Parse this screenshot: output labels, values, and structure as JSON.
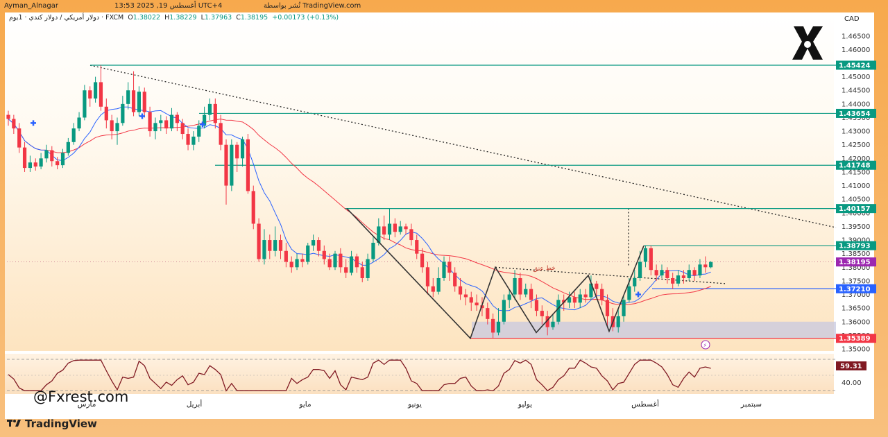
{
  "topbar": {
    "author": "Ayman_Alnagar",
    "published": "نُشر بواسطة TradingView.com",
    "datetime": "13:53 2025 ,19 أغسطس UTC+4"
  },
  "ohlc": {
    "symbol": "دولار أمريكي / دولار كندي · 1يوم · FXCM",
    "open_label": "O",
    "open": "1.38022",
    "high_label": "H",
    "high": "1.38229",
    "low_label": "L",
    "low": "1.37963",
    "close_label": "C",
    "close": "1.38195",
    "change": "+0.00173 (+0.13%)"
  },
  "currency": "CAD",
  "watermark_handle": "@Fxrest.com",
  "platform": "TradingView",
  "colors": {
    "bull": "#089981",
    "bear": "#f23645",
    "ma_fast": "#2962ff",
    "ma_slow": "#f23645",
    "level": "#089981",
    "support": "#2962ff",
    "bottom": "#f23645",
    "rsi": "#801922"
  },
  "annotation": "خط عنق",
  "chart_data": {
    "type": "candlestick",
    "title": "USD/CAD 1D",
    "y_ticks": [
      "1.46500",
      "1.46000",
      "1.45500",
      "1.45000",
      "1.44500",
      "1.44000",
      "1.43500",
      "1.43000",
      "1.42500",
      "1.42000",
      "1.41500",
      "1.41000",
      "1.40500",
      "1.40000",
      "1.39500",
      "1.39000",
      "1.38500",
      "1.38000",
      "1.37500",
      "1.37000",
      "1.36500",
      "1.36000",
      "1.35500",
      "1.35000"
    ],
    "ylim": [
      1.35,
      1.468
    ],
    "x_labels": [
      "مارس",
      "أبريل",
      "مايو",
      "يونيو",
      "يوليو",
      "أغسطس",
      "سبتمبر"
    ],
    "levels": [
      {
        "name": "res-1",
        "value": 1.45424,
        "label": "1.45424",
        "kind": "resistance"
      },
      {
        "name": "res-2",
        "value": 1.43654,
        "label": "1.43654",
        "kind": "resistance"
      },
      {
        "name": "res-3",
        "value": 1.41748,
        "label": "1.41748",
        "kind": "resistance"
      },
      {
        "name": "res-4",
        "value": 1.40157,
        "label": "1.40157",
        "kind": "resistance"
      },
      {
        "name": "res-5",
        "value": 1.38793,
        "label": "1.38793",
        "kind": "resistance"
      },
      {
        "name": "support",
        "value": 1.3721,
        "label": "1.37210",
        "kind": "support"
      },
      {
        "name": "bottom",
        "value": 1.35389,
        "label": "1.35389",
        "kind": "bottom"
      }
    ],
    "last_price": {
      "value": 1.38195,
      "label": "1.38195"
    },
    "support_zone": [
      1.35389,
      1.36
    ],
    "rsi": {
      "name": "RSI",
      "value": "59.31",
      "level": "40.00"
    },
    "candles": [
      [
        1.436,
        1.4345,
        1.4375,
        1.432
      ],
      [
        1.4345,
        1.431,
        1.436,
        1.429
      ],
      [
        1.431,
        1.424,
        1.433,
        1.422
      ],
      [
        1.424,
        1.4165,
        1.426,
        1.415
      ],
      [
        1.4165,
        1.4185,
        1.421,
        1.415
      ],
      [
        1.4185,
        1.417,
        1.42,
        1.4155
      ],
      [
        1.417,
        1.42,
        1.422,
        1.416
      ],
      [
        1.42,
        1.423,
        1.425,
        1.4185
      ],
      [
        1.423,
        1.419,
        1.4245,
        1.417
      ],
      [
        1.419,
        1.4175,
        1.4205,
        1.416
      ],
      [
        1.4175,
        1.422,
        1.4235,
        1.4165
      ],
      [
        1.422,
        1.426,
        1.4275,
        1.421
      ],
      [
        1.426,
        1.431,
        1.433,
        1.425
      ],
      [
        1.431,
        1.435,
        1.437,
        1.43
      ],
      [
        1.435,
        1.445,
        1.447,
        1.434
      ],
      [
        1.445,
        1.442,
        1.4465,
        1.439
      ],
      [
        1.442,
        1.448,
        1.45,
        1.4405
      ],
      [
        1.448,
        1.439,
        1.4542,
        1.4375
      ],
      [
        1.439,
        1.434,
        1.442,
        1.431
      ],
      [
        1.434,
        1.43,
        1.436,
        1.427
      ],
      [
        1.43,
        1.433,
        1.435,
        1.425
      ],
      [
        1.433,
        1.44,
        1.443,
        1.432
      ],
      [
        1.44,
        1.445,
        1.448,
        1.438
      ],
      [
        1.445,
        1.437,
        1.452,
        1.4355
      ],
      [
        1.437,
        1.4445,
        1.4465,
        1.4355
      ],
      [
        1.4445,
        1.437,
        1.446,
        1.435
      ],
      [
        1.437,
        1.43,
        1.439,
        1.428
      ],
      [
        1.43,
        1.433,
        1.435,
        1.427
      ],
      [
        1.433,
        1.434,
        1.436,
        1.43
      ],
      [
        1.434,
        1.431,
        1.4355,
        1.429
      ],
      [
        1.431,
        1.436,
        1.4385,
        1.43
      ],
      [
        1.436,
        1.433,
        1.437,
        1.43
      ],
      [
        1.433,
        1.429,
        1.4345,
        1.427
      ],
      [
        1.429,
        1.425,
        1.431,
        1.423
      ],
      [
        1.425,
        1.428,
        1.43,
        1.423
      ],
      [
        1.428,
        1.432,
        1.434,
        1.426
      ],
      [
        1.432,
        1.436,
        1.439,
        1.431
      ],
      [
        1.436,
        1.44,
        1.442,
        1.434
      ],
      [
        1.44,
        1.433,
        1.442,
        1.431
      ],
      [
        1.433,
        1.425,
        1.436,
        1.423
      ],
      [
        1.425,
        1.41,
        1.427,
        1.403
      ],
      [
        1.41,
        1.425,
        1.427,
        1.408
      ],
      [
        1.425,
        1.42,
        1.426,
        1.415
      ],
      [
        1.42,
        1.427,
        1.428,
        1.417
      ],
      [
        1.427,
        1.408,
        1.429,
        1.407
      ],
      [
        1.408,
        1.396,
        1.41,
        1.394
      ],
      [
        1.396,
        1.383,
        1.398,
        1.382
      ],
      [
        1.383,
        1.39,
        1.394,
        1.381
      ],
      [
        1.39,
        1.386,
        1.392,
        1.383
      ],
      [
        1.386,
        1.39,
        1.395,
        1.384
      ],
      [
        1.39,
        1.386,
        1.392,
        1.383
      ],
      [
        1.386,
        1.382,
        1.389,
        1.38
      ],
      [
        1.382,
        1.38,
        1.384,
        1.378
      ],
      [
        1.38,
        1.383,
        1.385,
        1.379
      ],
      [
        1.383,
        1.382,
        1.385,
        1.38
      ],
      [
        1.382,
        1.388,
        1.389,
        1.381
      ],
      [
        1.388,
        1.39,
        1.392,
        1.386
      ],
      [
        1.39,
        1.386,
        1.391,
        1.384
      ],
      [
        1.386,
        1.383,
        1.388,
        1.381
      ],
      [
        1.383,
        1.38,
        1.385,
        1.379
      ],
      [
        1.38,
        1.385,
        1.386,
        1.379
      ],
      [
        1.385,
        1.38,
        1.387,
        1.378
      ],
      [
        1.38,
        1.378,
        1.383,
        1.376
      ],
      [
        1.378,
        1.384,
        1.386,
        1.377
      ],
      [
        1.384,
        1.38,
        1.385,
        1.378
      ],
      [
        1.38,
        1.376,
        1.382,
        1.3745
      ],
      [
        1.376,
        1.383,
        1.385,
        1.375
      ],
      [
        1.383,
        1.389,
        1.391,
        1.382
      ],
      [
        1.389,
        1.395,
        1.398,
        1.388
      ],
      [
        1.395,
        1.392,
        1.399,
        1.39
      ],
      [
        1.392,
        1.396,
        1.4016,
        1.39
      ],
      [
        1.396,
        1.393,
        1.398,
        1.391
      ],
      [
        1.393,
        1.395,
        1.397,
        1.392
      ],
      [
        1.395,
        1.394,
        1.396,
        1.392
      ],
      [
        1.394,
        1.39,
        1.396,
        1.388
      ],
      [
        1.39,
        1.385,
        1.392,
        1.383
      ],
      [
        1.385,
        1.38,
        1.387,
        1.378
      ],
      [
        1.38,
        1.373,
        1.382,
        1.37
      ],
      [
        1.373,
        1.371,
        1.376,
        1.369
      ],
      [
        1.371,
        1.376,
        1.38,
        1.37
      ],
      [
        1.376,
        1.382,
        1.384,
        1.375
      ],
      [
        1.382,
        1.378,
        1.384,
        1.375
      ],
      [
        1.378,
        1.373,
        1.38,
        1.371
      ],
      [
        1.373,
        1.37,
        1.376,
        1.368
      ],
      [
        1.37,
        1.369,
        1.372,
        1.366
      ],
      [
        1.369,
        1.367,
        1.371,
        1.364
      ],
      [
        1.367,
        1.366,
        1.37,
        1.364
      ],
      [
        1.366,
        1.365,
        1.369,
        1.362
      ],
      [
        1.365,
        1.361,
        1.367,
        1.359
      ],
      [
        1.361,
        1.356,
        1.363,
        1.3539
      ],
      [
        1.356,
        1.36,
        1.365,
        1.355
      ],
      [
        1.36,
        1.368,
        1.37,
        1.359
      ],
      [
        1.368,
        1.37,
        1.372,
        1.365
      ],
      [
        1.37,
        1.376,
        1.379,
        1.368
      ],
      [
        1.376,
        1.37,
        1.378,
        1.368
      ],
      [
        1.37,
        1.372,
        1.374,
        1.369
      ],
      [
        1.372,
        1.368,
        1.374,
        1.365
      ],
      [
        1.368,
        1.364,
        1.37,
        1.362
      ],
      [
        1.364,
        1.362,
        1.366,
        1.359
      ],
      [
        1.362,
        1.358,
        1.364,
        1.355
      ],
      [
        1.358,
        1.36,
        1.363,
        1.357
      ],
      [
        1.36,
        1.368,
        1.37,
        1.359
      ],
      [
        1.368,
        1.367,
        1.37,
        1.364
      ],
      [
        1.367,
        1.369,
        1.371,
        1.365
      ],
      [
        1.369,
        1.367,
        1.371,
        1.365
      ],
      [
        1.367,
        1.37,
        1.372,
        1.365
      ],
      [
        1.37,
        1.369,
        1.372,
        1.367
      ],
      [
        1.369,
        1.374,
        1.377,
        1.368
      ],
      [
        1.374,
        1.372,
        1.375,
        1.369
      ],
      [
        1.372,
        1.368,
        1.374,
        1.366
      ],
      [
        1.368,
        1.362,
        1.37,
        1.358
      ],
      [
        1.362,
        1.358,
        1.365,
        1.3565
      ],
      [
        1.358,
        1.362,
        1.365,
        1.356
      ],
      [
        1.362,
        1.368,
        1.37,
        1.36
      ],
      [
        1.368,
        1.373,
        1.376,
        1.367
      ],
      [
        1.373,
        1.376,
        1.379,
        1.371
      ],
      [
        1.376,
        1.382,
        1.386,
        1.375
      ],
      [
        1.382,
        1.387,
        1.3879,
        1.38
      ],
      [
        1.387,
        1.379,
        1.3879,
        1.377
      ],
      [
        1.379,
        1.377,
        1.381,
        1.375
      ],
      [
        1.377,
        1.379,
        1.381,
        1.376
      ],
      [
        1.379,
        1.376,
        1.38,
        1.374
      ],
      [
        1.376,
        1.374,
        1.378,
        1.372
      ],
      [
        1.374,
        1.377,
        1.379,
        1.373
      ],
      [
        1.377,
        1.376,
        1.379,
        1.374
      ],
      [
        1.376,
        1.379,
        1.381,
        1.375
      ],
      [
        1.379,
        1.377,
        1.38,
        1.375
      ],
      [
        1.377,
        1.381,
        1.383,
        1.376
      ],
      [
        1.381,
        1.38,
        1.384,
        1.378
      ],
      [
        1.38,
        1.3819,
        1.3823,
        1.3796
      ]
    ]
  }
}
